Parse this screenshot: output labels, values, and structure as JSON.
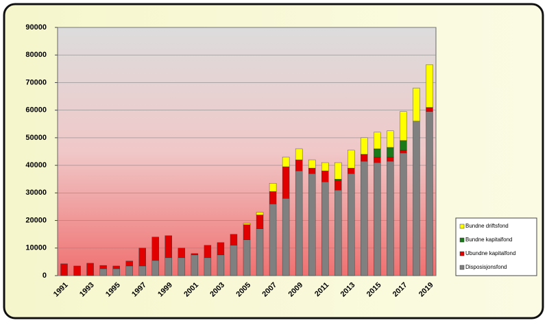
{
  "chart_data": {
    "type": "stacked_bar",
    "categories": [
      "1991",
      null,
      "1993",
      null,
      "1995",
      null,
      "1997",
      null,
      "1999",
      null,
      "2001",
      null,
      "2003",
      null,
      "2005",
      null,
      "2007",
      null,
      "2009",
      null,
      "2011",
      null,
      "2013",
      null,
      "2015",
      null,
      "2017",
      null,
      "2019"
    ],
    "series": [
      {
        "name": "Disposisjonsfond",
        "color": "#808080",
        "values": [
          0,
          0,
          0,
          2500,
          2500,
          3500,
          3500,
          5500,
          6500,
          6500,
          7500,
          6500,
          7500,
          11000,
          13000,
          17000,
          26000,
          28000,
          38000,
          37000,
          34000,
          31000,
          37000,
          41500,
          41000,
          41500,
          44500,
          56000,
          59500
        ]
      },
      {
        "name": "Ubundne kapitalfond",
        "color": "#e00000",
        "values": [
          4300,
          3500,
          4500,
          1200,
          1000,
          1800,
          6500,
          8500,
          8000,
          3500,
          500,
          4500,
          4500,
          4000,
          5500,
          5000,
          4500,
          11500,
          4000,
          2000,
          4000,
          3500,
          2000,
          2500,
          2000,
          1500,
          1000,
          0,
          1500
        ]
      },
      {
        "name": "Bundne kapitalfond",
        "color": "#1a7a1a",
        "values": [
          0,
          0,
          0,
          0,
          0,
          0,
          0,
          0,
          0,
          0,
          0,
          0,
          0,
          0,
          0,
          0,
          0,
          0,
          0,
          0,
          0,
          500,
          0,
          0,
          3000,
          3500,
          3500,
          0,
          0
        ]
      },
      {
        "name": "Bundne driftsfond",
        "color": "#ffff00",
        "values": [
          0,
          0,
          0,
          0,
          0,
          0,
          0,
          0,
          0,
          0,
          0,
          0,
          0,
          0,
          500,
          1000,
          3000,
          3500,
          4000,
          3000,
          3000,
          6000,
          6500,
          6000,
          6000,
          6000,
          10500,
          12000,
          15500
        ]
      }
    ],
    "ylim": [
      0,
      90000
    ],
    "yticks": [
      0,
      10000,
      20000,
      30000,
      40000,
      50000,
      60000,
      70000,
      80000,
      90000
    ],
    "grid": true
  }
}
